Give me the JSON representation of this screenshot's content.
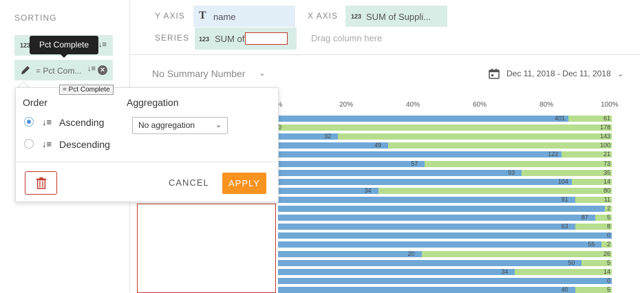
{
  "sidebar": {
    "title": "SORTING",
    "pill1": {
      "type": "123",
      "tooltip": "Pct Complete"
    },
    "pill2": {
      "label": "= Pct Com..."
    },
    "small_tooltip": "= Pct Complete"
  },
  "shelves": {
    "y_axis_label": "Y AXIS",
    "y_axis_type": "T",
    "y_axis_value": "name",
    "x_axis_label": "X AXIS",
    "x_axis_type": "123",
    "x_axis_value": "SUM of Suppli...",
    "series_label": "SERIES",
    "series_type": "123",
    "series_value": "SUM of",
    "drag_hint": "Drag column here"
  },
  "summary": {
    "selected": "No Summary Number",
    "date_range": "Dec 11, 2018 - Dec 11, 2018"
  },
  "popover": {
    "order_title": "Order",
    "ascending": "Ascending",
    "descending": "Descending",
    "aggregation_title": "Aggregation",
    "aggregation_value": "No aggregation",
    "cancel": "CANCEL",
    "apply": "APPLY"
  },
  "chart_data": {
    "type": "bar",
    "orientation": "horizontal-stacked-100",
    "x_ticks": [
      "0%",
      "20%",
      "40%",
      "60%",
      "80%",
      "100%"
    ],
    "rows": [
      {
        "blue": 401,
        "green": 61,
        "blue_pct": 0.87
      },
      {
        "blue": 0,
        "green": 178,
        "blue_pct": 0.0
      },
      {
        "blue": 32,
        "green": 143,
        "blue_pct": 0.18
      },
      {
        "blue": 49,
        "green": 100,
        "blue_pct": 0.33
      },
      {
        "blue": 122,
        "green": 21,
        "blue_pct": 0.85
      },
      {
        "blue": 57,
        "green": 73,
        "blue_pct": 0.44
      },
      {
        "blue": 93,
        "green": 35,
        "blue_pct": 0.73
      },
      {
        "blue": 104,
        "green": 14,
        "blue_pct": 0.88
      },
      {
        "blue": 34,
        "green": 80,
        "blue_pct": 0.3
      },
      {
        "blue": 91,
        "green": 11,
        "blue_pct": 0.89
      },
      {
        "blue": null,
        "green": 2,
        "blue_pct": 0.98
      },
      {
        "blue": 87,
        "green": 5,
        "blue_pct": 0.95
      },
      {
        "blue": 63,
        "green": 8,
        "blue_pct": 0.89
      },
      {
        "blue": null,
        "green": 0,
        "blue_pct": 1.0
      },
      {
        "blue": 55,
        "green": 2,
        "blue_pct": 0.97
      },
      {
        "blue": 20,
        "green": 26,
        "blue_pct": 0.43
      },
      {
        "blue": 50,
        "green": 5,
        "blue_pct": 0.91
      },
      {
        "blue": 34,
        "green": 14,
        "blue_pct": 0.71
      },
      {
        "blue": null,
        "green": 0,
        "blue_pct": 1.0
      },
      {
        "blue": 40,
        "green": 5,
        "blue_pct": 0.89
      }
    ],
    "colors": {
      "blue": "#6fa8d6",
      "green": "#b7de8e"
    }
  }
}
